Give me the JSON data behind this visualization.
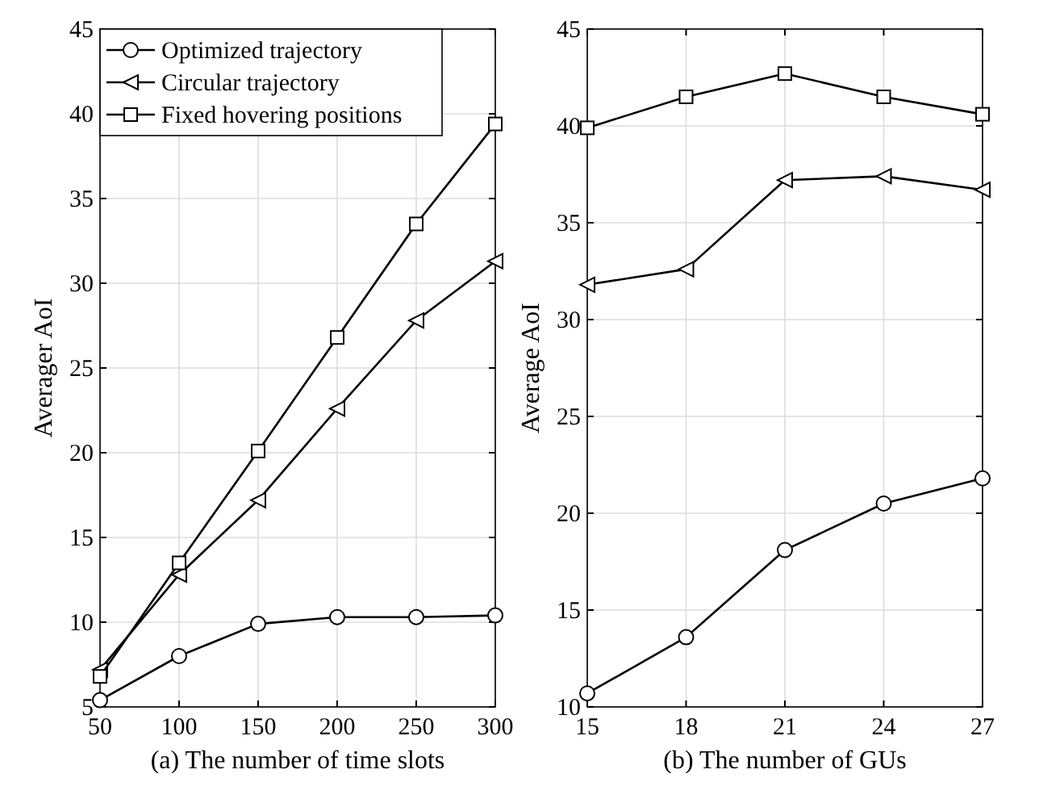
{
  "chart_data": [
    {
      "type": "line",
      "xlabel": "(a) The number of time slots",
      "ylabel": "Averager AoI",
      "x": [
        50,
        100,
        150,
        200,
        250,
        300
      ],
      "xlim": [
        50,
        300
      ],
      "xticks": [
        50,
        100,
        150,
        200,
        250,
        300
      ],
      "ylim": [
        5,
        45
      ],
      "yticks": [
        5,
        10,
        15,
        20,
        25,
        30,
        35,
        40,
        45
      ],
      "grid": true,
      "legend": "top left",
      "series": [
        {
          "name": "Optimized trajectory",
          "color": "#000000",
          "marker": "circle",
          "values": [
            5.4,
            8.0,
            9.9,
            10.3,
            10.3,
            10.4
          ]
        },
        {
          "name": "Circular trajectory",
          "color": "#000000",
          "marker": "triangle",
          "values": [
            7.2,
            12.8,
            17.2,
            22.6,
            27.8,
            31.3
          ]
        },
        {
          "name": "Fixed hovering positions",
          "color": "#000000",
          "marker": "square",
          "values": [
            6.8,
            13.5,
            20.1,
            26.8,
            33.5,
            39.4
          ]
        }
      ]
    },
    {
      "type": "line",
      "xlabel": "(b) The number of GUs",
      "ylabel": "Average AoI",
      "x": [
        15,
        18,
        21,
        24,
        27
      ],
      "xlim": [
        15,
        27
      ],
      "xticks": [
        15,
        18,
        21,
        24,
        27
      ],
      "ylim": [
        10,
        45
      ],
      "yticks": [
        10,
        15,
        20,
        25,
        30,
        35,
        40,
        45
      ],
      "grid": true,
      "series": [
        {
          "color": "#000000",
          "marker": "circle",
          "values": [
            10.7,
            13.6,
            18.1,
            20.5,
            21.8
          ]
        },
        {
          "color": "#000000",
          "marker": "triangle",
          "values": [
            31.8,
            32.6,
            37.2,
            37.4,
            36.7
          ]
        },
        {
          "color": "#000000",
          "marker": "square",
          "values": [
            39.9,
            41.5,
            42.7,
            41.5,
            40.6
          ]
        }
      ]
    }
  ]
}
